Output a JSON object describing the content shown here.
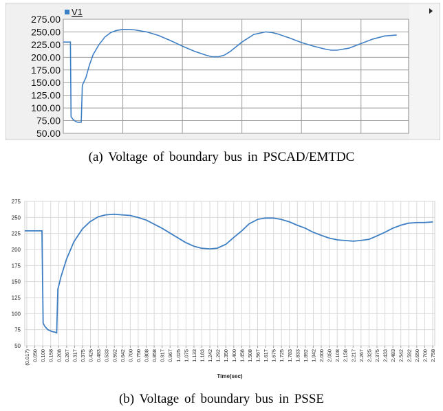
{
  "captions": {
    "a": "(a)  Voltage  of  boundary  bus  in  PSCAD/EMTDC",
    "b": "(b)  Voltage  of  boundary  bus  in  PSSE"
  },
  "colors": {
    "series": "#3e7fc4",
    "grid_top": "#9a9a9a",
    "grid_bottom": "#d9d9d9",
    "plot_bg_top": "#ffffff",
    "panel_bg_top": "#f0f0f0"
  },
  "icons": {
    "top_scroll_arrow": "triangle-right-icon"
  },
  "chart_data": [
    {
      "id": "pscad",
      "type": "line",
      "legend": "V1",
      "legend_placement": "top-left",
      "ylim": [
        50,
        275
      ],
      "xlim": [
        0,
        2.9
      ],
      "grid": true,
      "y_ticks": [
        "275.00",
        "250.00",
        "225.00",
        "200.00",
        "175.00",
        "150.00",
        "125.00",
        "100.00",
        "75.00",
        "50.00"
      ],
      "x_gridlines": [
        0.5,
        1.0,
        1.5,
        2.0,
        2.5
      ],
      "series": [
        {
          "name": "V1",
          "x": [
            0.0,
            0.02,
            0.06,
            0.065,
            0.08,
            0.1,
            0.12,
            0.1505,
            0.16,
            0.19,
            0.22,
            0.25,
            0.3,
            0.35,
            0.4,
            0.45,
            0.5,
            0.55,
            0.6,
            0.65,
            0.7,
            0.8,
            0.9,
            1.0,
            1.1,
            1.2,
            1.25,
            1.3,
            1.35,
            1.4,
            1.5,
            1.6,
            1.7,
            1.75,
            1.8,
            1.9,
            2.0,
            2.1,
            2.2,
            2.25,
            2.3,
            2.4,
            2.5,
            2.6,
            2.7,
            2.8
          ],
          "values": [
            230,
            230,
            230,
            83,
            78,
            74,
            72,
            72,
            145,
            160,
            185,
            205,
            225,
            240,
            249,
            253,
            255,
            255,
            254,
            252,
            250,
            243,
            233,
            222,
            212,
            204,
            201,
            201,
            204,
            211,
            230,
            245,
            250,
            249,
            246,
            238,
            229,
            222,
            216,
            214,
            214,
            218,
            227,
            236,
            242,
            244
          ]
        }
      ]
    },
    {
      "id": "psse",
      "type": "line",
      "xlabel": "Time(sec)",
      "ylim": [
        50,
        275
      ],
      "y_ticks": [
        275,
        250,
        225,
        200,
        175,
        150,
        125,
        100,
        75,
        50
      ],
      "x_tick_labels": [
        "(0.017)",
        "0.050",
        "0.100",
        "0.158",
        "0.208",
        "0.267",
        "0.317",
        "0.375",
        "0.425",
        "0.483",
        "0.533",
        "0.592",
        "0.642",
        "0.700",
        "0.750",
        "0.808",
        "0.858",
        "0.917",
        "0.967",
        "1.025",
        "1.075",
        "1.133",
        "1.183",
        "1.242",
        "1.292",
        "1.350",
        "1.400",
        "1.458",
        "1.508",
        "1.567",
        "1.617",
        "1.675",
        "1.725",
        "1.783",
        "1.833",
        "1.892",
        "1.942",
        "2.000",
        "2.050",
        "2.108",
        "2.158",
        "2.217",
        "2.267",
        "2.325",
        "2.375",
        "2.433",
        "2.483",
        "2.542",
        "2.592",
        "2.650",
        "2.700",
        "2.758"
      ],
      "xlim": [
        -0.017,
        2.77
      ],
      "grid": true,
      "series": [
        {
          "x": [
            -0.017,
            0.05,
            0.1,
            0.108,
            0.12,
            0.14,
            0.17,
            0.19,
            0.2,
            0.208,
            0.23,
            0.267,
            0.317,
            0.375,
            0.425,
            0.483,
            0.533,
            0.592,
            0.642,
            0.7,
            0.75,
            0.808,
            0.858,
            0.917,
            0.967,
            1.025,
            1.075,
            1.133,
            1.183,
            1.242,
            1.292,
            1.35,
            1.4,
            1.458,
            1.508,
            1.567,
            1.617,
            1.675,
            1.725,
            1.783,
            1.833,
            1.892,
            1.942,
            2.0,
            2.05,
            2.108,
            2.158,
            2.217,
            2.267,
            2.325,
            2.375,
            2.433,
            2.483,
            2.542,
            2.592,
            2.65,
            2.7,
            2.758
          ],
          "values": [
            229,
            229,
            229,
            85,
            80,
            75,
            72,
            71,
            70,
            138,
            158,
            185,
            212,
            232,
            243,
            251,
            254,
            255,
            254,
            253,
            250,
            246,
            240,
            233,
            226,
            218,
            211,
            205,
            202,
            201,
            202,
            208,
            218,
            229,
            240,
            247,
            249,
            249,
            247,
            243,
            238,
            233,
            227,
            222,
            218,
            215,
            214,
            213,
            214,
            216,
            221,
            227,
            233,
            238,
            241,
            242,
            242,
            243
          ]
        }
      ]
    }
  ]
}
